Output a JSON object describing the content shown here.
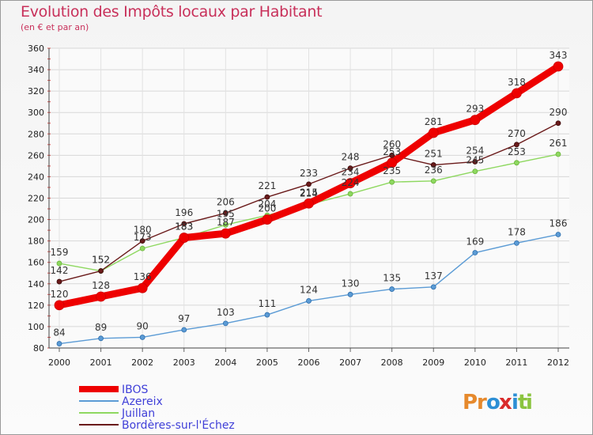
{
  "chart_data": {
    "type": "line",
    "title": "Evolution des Impôts locaux par Habitant",
    "subtitle": "(en € et par an)",
    "categories": [
      "2000",
      "2001",
      "2002",
      "2003",
      "2004",
      "2005",
      "2006",
      "2007",
      "2008",
      "2009",
      "2010",
      "2011",
      "2012"
    ],
    "ylim": [
      80,
      360
    ],
    "yticks": [
      80,
      100,
      120,
      140,
      160,
      180,
      200,
      220,
      240,
      260,
      280,
      300,
      320,
      340,
      360
    ],
    "grid": true,
    "legend_position": "bottom-left",
    "series": [
      {
        "name": "IBOS",
        "color": "#ee0000",
        "values": [
          120,
          128,
          136,
          183,
          187,
          200,
          215,
          234,
          253,
          281,
          293,
          318,
          343
        ]
      },
      {
        "name": "Azereix",
        "color": "#5b9bd5",
        "values": [
          84,
          89,
          90,
          97,
          103,
          111,
          124,
          130,
          135,
          137,
          169,
          178,
          186
        ]
      },
      {
        "name": "Juillan",
        "color": "#8ed860",
        "values": [
          159,
          152,
          173,
          183,
          195,
          204,
          214,
          224,
          235,
          236,
          245,
          253,
          261
        ]
      },
      {
        "name": "Bordères-sur-l'Échez",
        "color": "#6a1a1a",
        "values": [
          142,
          152,
          180,
          196,
          206,
          221,
          233,
          248,
          260,
          251,
          254,
          270,
          290
        ]
      }
    ]
  },
  "logo": {
    "text": "Proxiti",
    "letters": [
      "P",
      "r",
      "o",
      "x",
      "i",
      "t",
      "i"
    ],
    "colors": [
      "#e6892c",
      "#e6892c",
      "#2d8fd5",
      "#d92b2b",
      "#2d8fd5",
      "#8bc43f",
      "#8bc43f"
    ]
  }
}
